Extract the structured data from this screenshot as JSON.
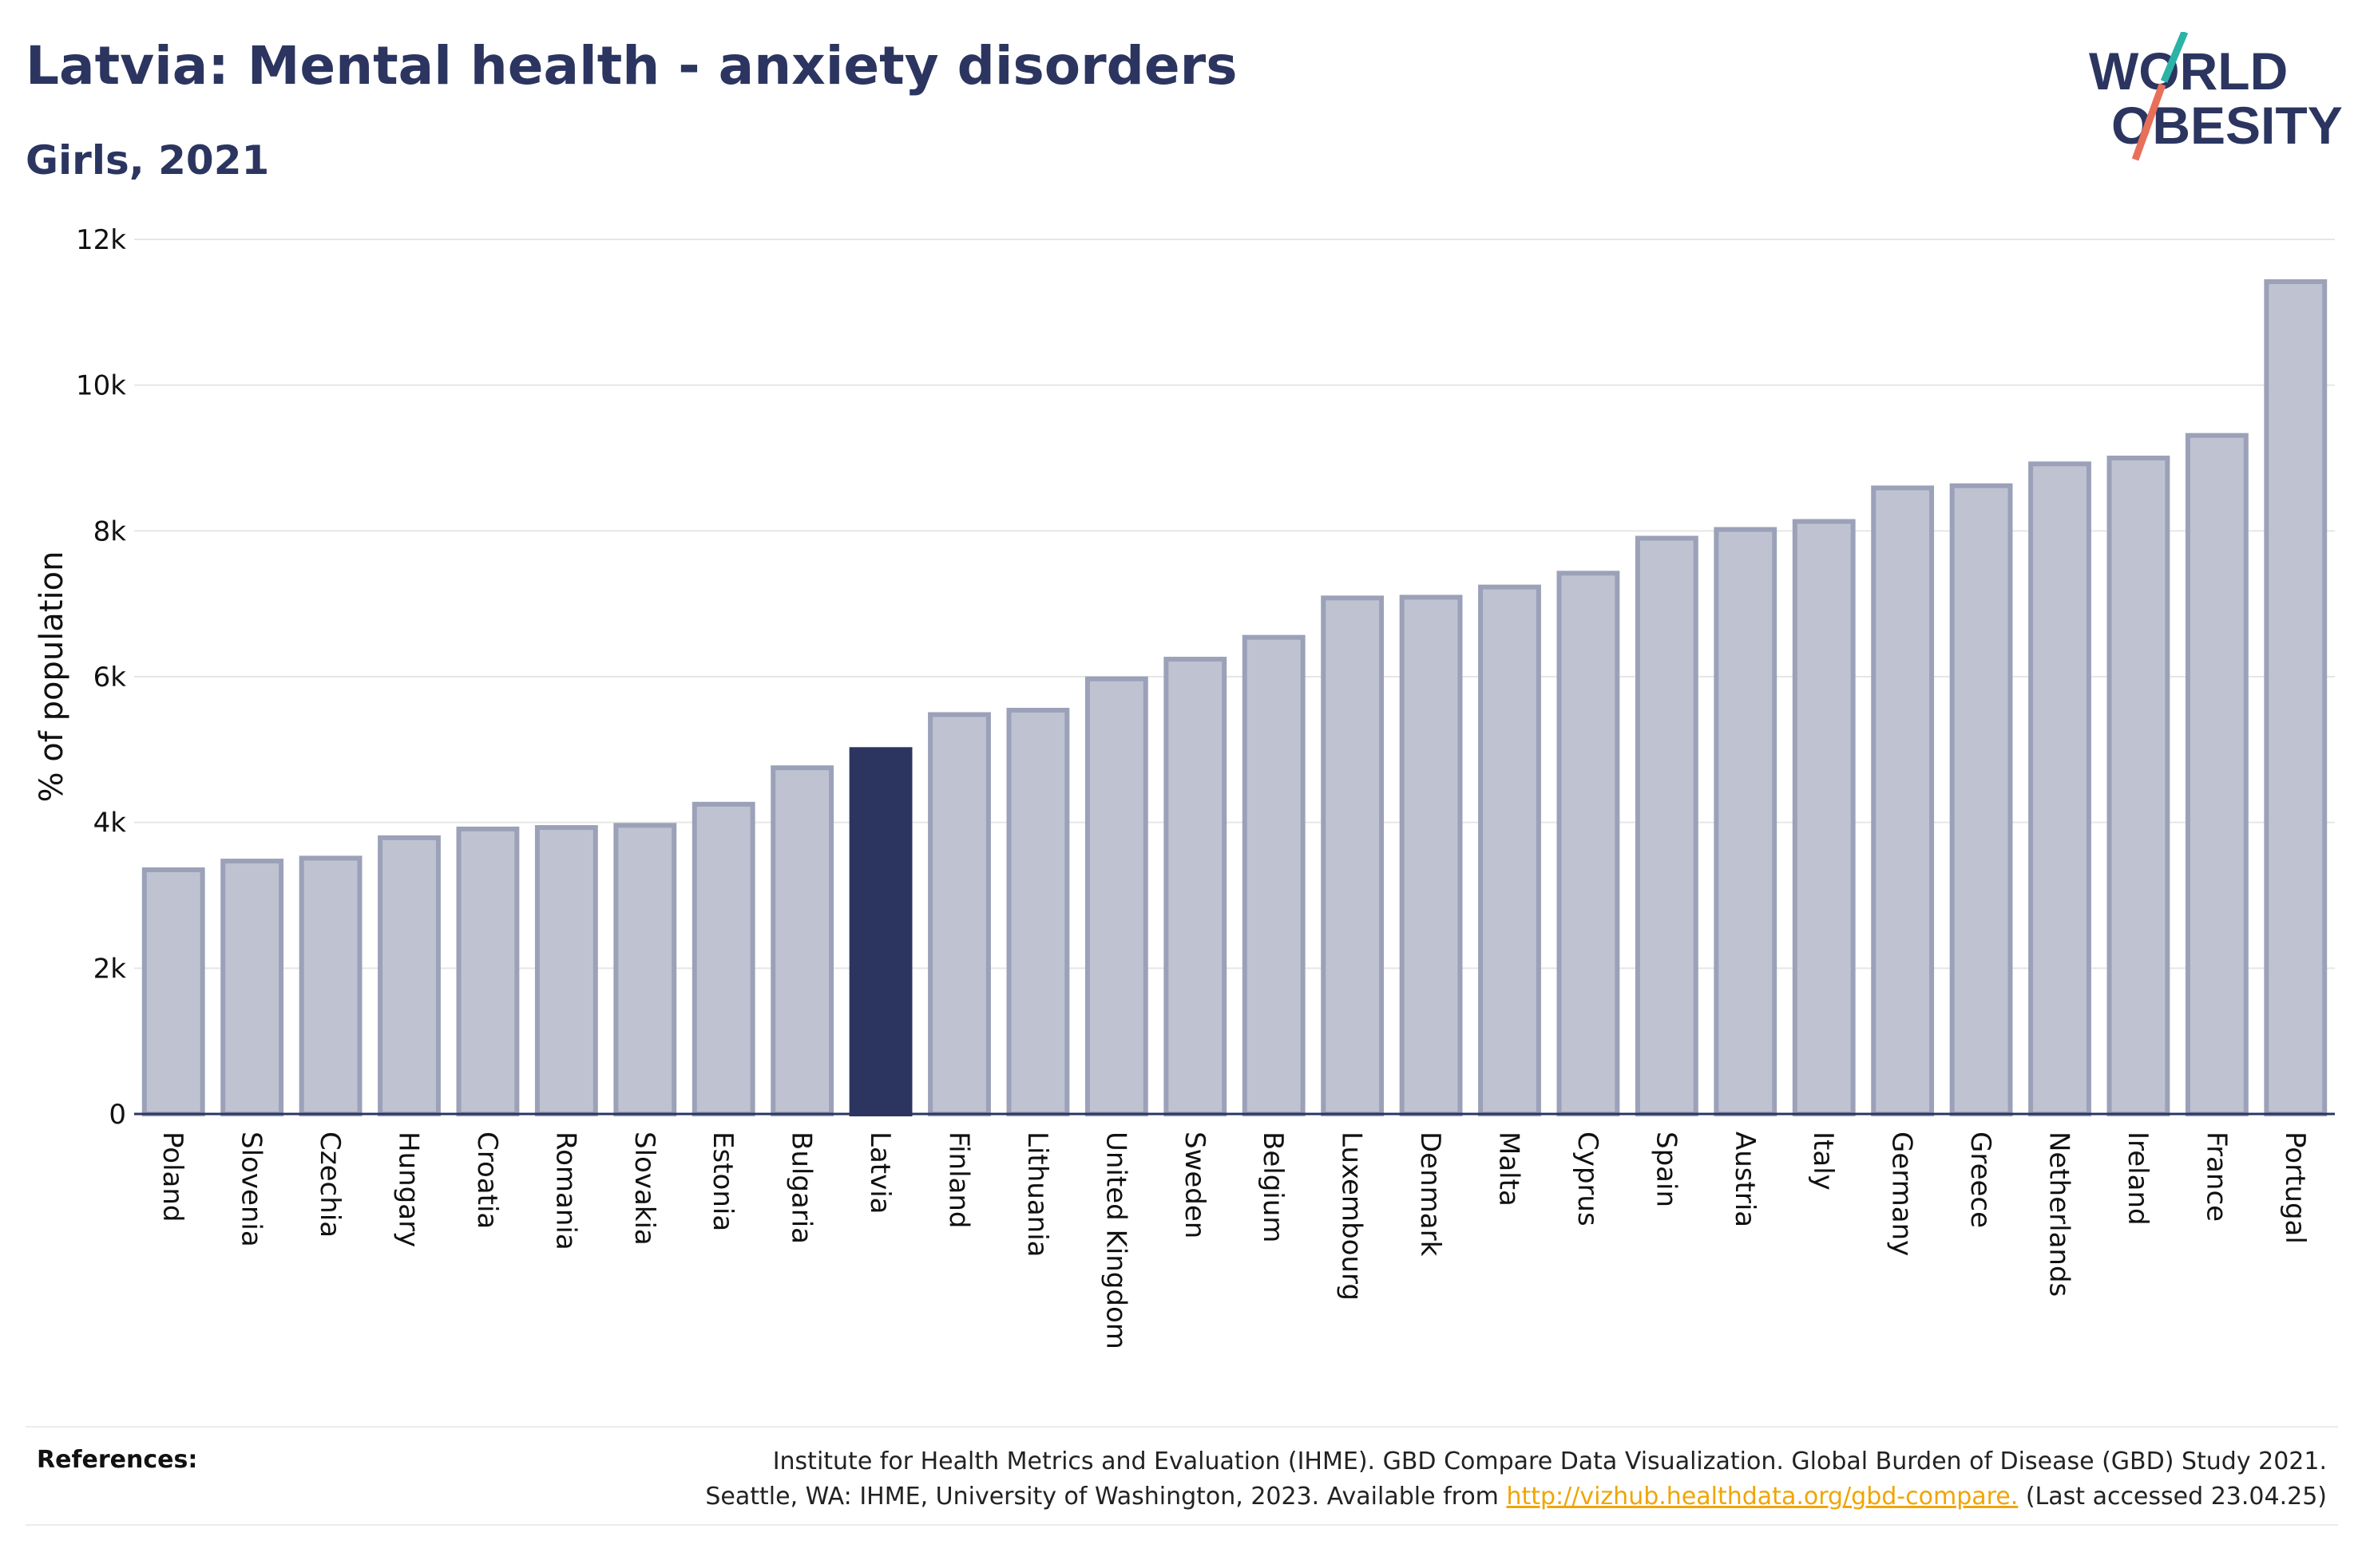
{
  "title": "Latvia: Mental health - anxiety disorders",
  "subtitle": "Girls, 2021",
  "logo": {
    "line1": "WORLD",
    "line2": "OBESITY"
  },
  "colors": {
    "title": "#2b3560",
    "bar": "#bfc3d1",
    "bar_border": "#9ba1b8",
    "highlight": "#2b3560",
    "logo_teal": "#2bb3a7",
    "logo_coral": "#e8705a",
    "link": "#f0a500"
  },
  "chart_data": {
    "type": "bar",
    "ylabel": "% of population",
    "xlabel": "",
    "ylim": [
      0,
      12000
    ],
    "yticks": [
      0,
      2000,
      4000,
      6000,
      8000,
      10000,
      12000
    ],
    "ytick_labels": [
      "0",
      "2k",
      "4k",
      "6k",
      "8k",
      "10k",
      "12k"
    ],
    "grid": true,
    "highlight": "Latvia",
    "categories": [
      "Poland",
      "Slovenia",
      "Czechia",
      "Hungary",
      "Croatia",
      "Romania",
      "Slovakia",
      "Estonia",
      "Bulgaria",
      "Latvia",
      "Finland",
      "Lithuania",
      "United Kingdom",
      "Sweden",
      "Belgium",
      "Luxembourg",
      "Denmark",
      "Malta",
      "Cyprus",
      "Spain",
      "Austria",
      "Italy",
      "Germany",
      "Greece",
      "Netherlands",
      "Ireland",
      "France",
      "Portugal"
    ],
    "values": [
      3350,
      3470,
      3510,
      3790,
      3910,
      3930,
      3960,
      4250,
      4750,
      5000,
      5480,
      5540,
      5970,
      6240,
      6540,
      7080,
      7090,
      7230,
      7420,
      7900,
      8020,
      8130,
      8590,
      8620,
      8920,
      9000,
      9310,
      11420
    ]
  },
  "references": {
    "label": "References:",
    "line1": "Institute for Health Metrics and Evaluation (IHME). GBD Compare Data Visualization. Global Burden of Disease (GBD) Study 2021.",
    "line2_prefix": "Seattle, WA: IHME, University of Washington, 2023. Available from ",
    "link": "http://vizhub.healthdata.org/gbd-compare.",
    "line2_suffix": " (Last accessed 23.04.25)"
  }
}
